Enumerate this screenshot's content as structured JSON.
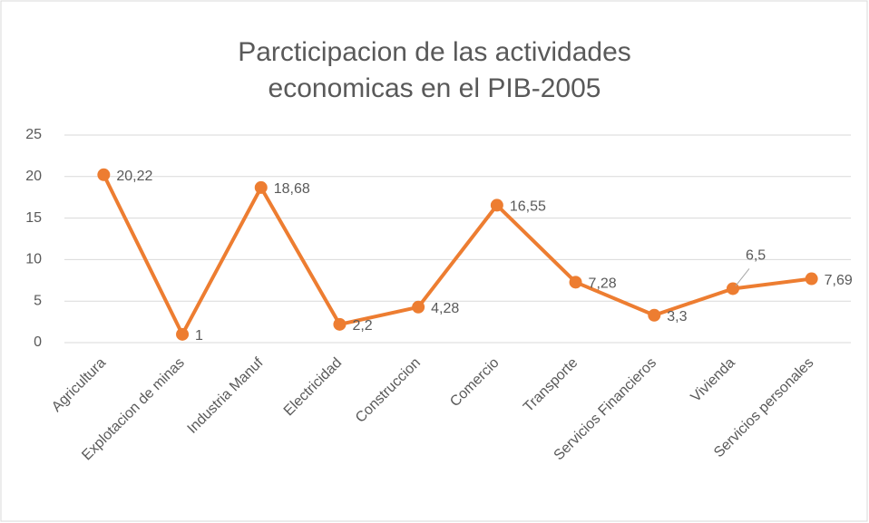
{
  "chart_data": {
    "type": "line",
    "title": "Parcticipacion de las actividades economicas en el PIB-2005",
    "categories": [
      "Agricultura",
      "Explotacion de minas",
      "Industria Manuf",
      "Electricidad",
      "Construccion",
      "Comercio",
      "Transporte",
      "Servicios Financieros",
      "Vivienda",
      "Servicios personales"
    ],
    "series": [
      {
        "name": "PIB-2005",
        "color": "#ed7d31",
        "values": [
          20.22,
          1,
          18.68,
          2.2,
          4.28,
          16.55,
          7.28,
          3.3,
          6.5,
          7.69
        ],
        "value_labels": [
          "20,22",
          "1",
          "18,68",
          "2,2",
          "4,28",
          "16,55",
          "7,28",
          "3,3",
          "6,5",
          "7,69"
        ]
      }
    ],
    "ylim": [
      0,
      25
    ],
    "yticks": [
      0,
      5,
      10,
      15,
      20,
      25
    ],
    "grid": true,
    "legend": false
  }
}
